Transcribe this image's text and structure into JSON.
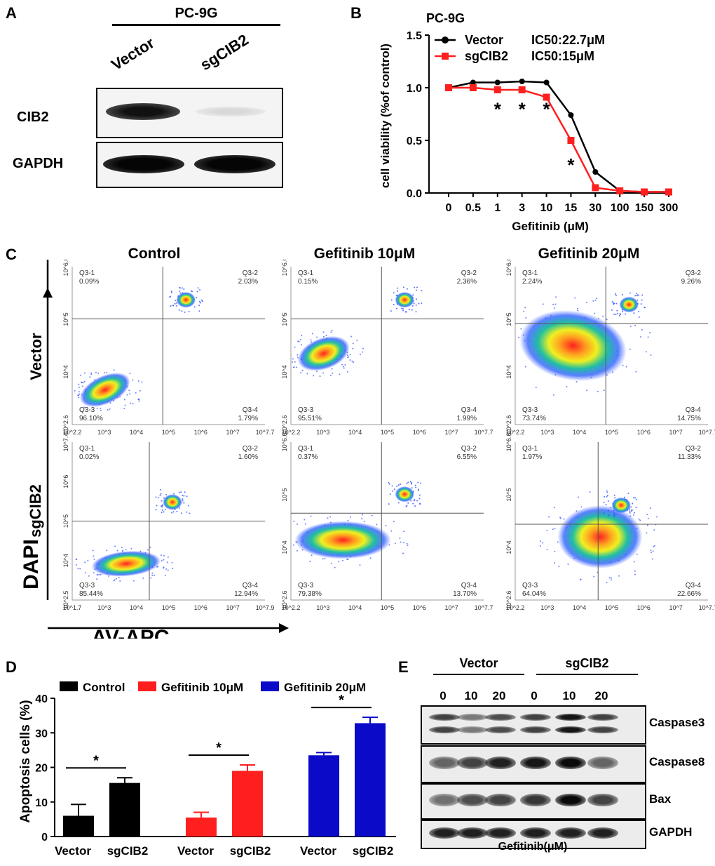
{
  "panelA": {
    "letter": "A",
    "cell_line": "PC-9G",
    "lanes": [
      "Vector",
      "sgCIB2"
    ],
    "rows": [
      "CIB2",
      "GAPDH"
    ]
  },
  "panelB": {
    "letter": "B",
    "chart_data": {
      "type": "line",
      "title": "PC-9G",
      "xlabel": "Gefitinib (μM)",
      "ylabel": "cell viability (%of control)",
      "categories": [
        "0",
        "0.5",
        "1",
        "3",
        "10",
        "15",
        "30",
        "100",
        "150",
        "300"
      ],
      "ylim": [
        0,
        1.5
      ],
      "yticks": [
        "0.0",
        "0.5",
        "1.0",
        "1.5"
      ],
      "series": [
        {
          "name": "Vector",
          "ic50": "IC50:22.7μM",
          "color": "#000000",
          "values": [
            1.0,
            1.05,
            1.05,
            1.06,
            1.05,
            0.74,
            0.2,
            0.02,
            0.01,
            0.01
          ]
        },
        {
          "name": "sgCIB2",
          "ic50": "IC50:15μM",
          "color": "#ff1f1f",
          "values": [
            1.0,
            1.0,
            0.98,
            0.98,
            0.91,
            0.5,
            0.05,
            0.02,
            0.01,
            0.01
          ]
        }
      ],
      "significance_at": [
        "1",
        "3",
        "10",
        "15"
      ],
      "star": "*"
    }
  },
  "panelC": {
    "letter": "C",
    "columns": [
      "Control",
      "Gefitinib 10μM",
      "Gefitinib 20μM"
    ],
    "rows": [
      "Vector",
      "sgCIB2"
    ],
    "y_axis_label": "DAPI",
    "x_axis_label": "AV-APC",
    "plots": [
      {
        "q1": "Q3-1",
        "q1v": "0.09%",
        "q2": "Q3-2",
        "q2v": "2.03%",
        "q3": "Q3-3",
        "q3v": "96.10%",
        "q4": "Q3-4",
        "q4v": "1.79%",
        "xt": [
          "10^2.2",
          "10^3",
          "10^4",
          "10^5",
          "10^6",
          "10^7",
          "10^7.7"
        ],
        "yt": [
          "10^6.6",
          "10^5",
          "10^4",
          "10^2.6"
        ]
      },
      {
        "q1": "Q3-1",
        "q1v": "0.15%",
        "q2": "Q3-2",
        "q2v": "2.36%",
        "q3": "Q3-3",
        "q3v": "95.51%",
        "q4": "Q3-4",
        "q4v": "1.99%",
        "xt": [
          "10^2.2",
          "10^3",
          "10^4",
          "10^5",
          "10^6",
          "10^7",
          "10^7.7"
        ],
        "yt": [
          "10^6.6",
          "10^5",
          "10^4",
          "10^2.6"
        ]
      },
      {
        "q1": "Q3-1",
        "q1v": "2.24%",
        "q2": "Q3-2",
        "q2v": "9.26%",
        "q3": "Q3-3",
        "q3v": "73.74%",
        "q4": "Q3-4",
        "q4v": "14.75%",
        "xt": [
          "10^2.2",
          "10^3",
          "10^4",
          "10^5",
          "10^6",
          "10^7",
          "10^7.7"
        ],
        "yt": [
          "10^6.6",
          "10^5",
          "10^4",
          "10^2.6"
        ]
      },
      {
        "q1": "Q3-1",
        "q1v": "0.02%",
        "q2": "Q3-2",
        "q2v": "1.60%",
        "q3": "Q3-3",
        "q3v": "85.44%",
        "q4": "Q3-4",
        "q4v": "12.94%",
        "xt": [
          "10^1.7",
          "10^3",
          "10^4",
          "10^5",
          "10^6",
          "10^7",
          "10^7.9"
        ],
        "yt": [
          "10^7.4",
          "10^6",
          "10^5",
          "10^4",
          "10^2.5"
        ]
      },
      {
        "q1": "Q3-1",
        "q1v": "0.37%",
        "q2": "Q3-2",
        "q2v": "6.55%",
        "q3": "Q3-3",
        "q3v": "79.38%",
        "q4": "Q3-4",
        "q4v": "13.70%",
        "xt": [
          "10^2.2",
          "10^3",
          "10^4",
          "10^5",
          "10^6",
          "10^7",
          "10^7.7"
        ],
        "yt": [
          "10^6.6",
          "10^5",
          "10^4",
          "10^2.6"
        ]
      },
      {
        "q1": "Q3-1",
        "q1v": "1.97%",
        "q2": "Q3-2",
        "q2v": "11.33%",
        "q3": "Q3-3",
        "q3v": "64.04%",
        "q4": "Q3-4",
        "q4v": "22.66%",
        "xt": [
          "10^2.2",
          "10^3",
          "10^4",
          "10^5",
          "10^6",
          "10^7",
          "10^7.7"
        ],
        "yt": [
          "10^6.6",
          "10^5",
          "10^4",
          "10^2.6"
        ]
      }
    ]
  },
  "panelD": {
    "letter": "D",
    "chart_data": {
      "type": "bar",
      "ylabel": "Apoptosis cells (%)",
      "ylim": [
        0,
        40
      ],
      "yticks": [
        "0",
        "10",
        "20",
        "30",
        "40"
      ],
      "legend": [
        "Control",
        "Gefitinib 10μM",
        "Gefitinib 20μM"
      ],
      "colors": [
        "#000000",
        "#ff1f1f",
        "#0a0ac8"
      ],
      "categories": [
        "Vector",
        "sgCIB2"
      ],
      "groups": [
        {
          "name": "Control",
          "values": [
            6,
            15.5
          ],
          "errors": [
            3.3,
            1.5
          ]
        },
        {
          "name": "Gefitinib 10μM",
          "values": [
            5.5,
            19
          ],
          "errors": [
            1.5,
            1.7
          ]
        },
        {
          "name": "Gefitinib 20μM",
          "values": [
            23.5,
            32.8
          ],
          "errors": [
            0.8,
            1.7
          ]
        }
      ],
      "star": "*"
    }
  },
  "panelE": {
    "letter": "E",
    "groups": [
      "Vector",
      "sgCIB2"
    ],
    "doses": [
      "0",
      "10",
      "20",
      "0",
      "10",
      "20"
    ],
    "rows": [
      "Caspase3",
      "Caspase8",
      "Bax",
      "GAPDH"
    ],
    "xlabel": "Gefitinib(μM)"
  }
}
